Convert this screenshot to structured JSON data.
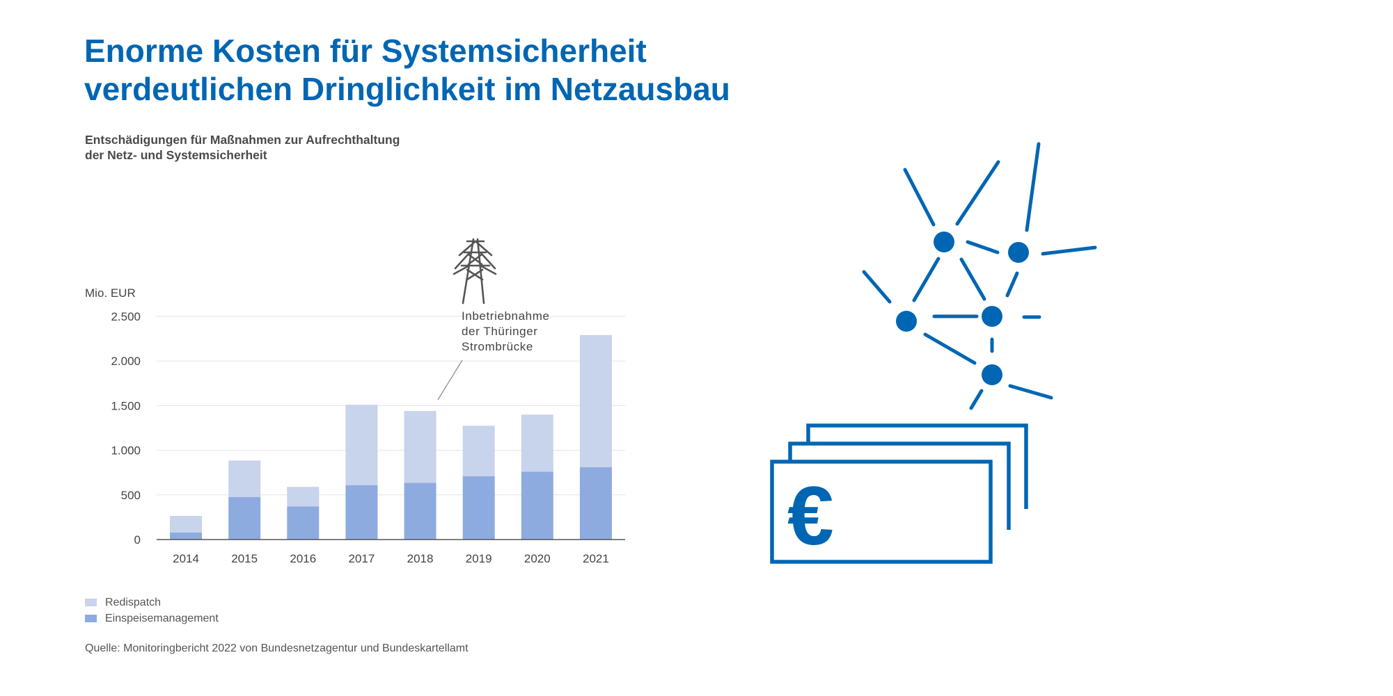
{
  "header": {
    "title_line1": "Enorme Kosten für Systemsicherheit",
    "title_line2": "verdeutlichen Dringlichkeit im Netzausbau"
  },
  "colors": {
    "brand_blue": "#0066b3",
    "redispatch": "#c8d3ec",
    "einspeisemanagement": "#8eabdf",
    "grid": "#e3e3e3",
    "pylon": "#555555"
  },
  "chart_data": {
    "type": "bar",
    "stacked": true,
    "title": "Entschädigungen für Maßnahmen zur Aufrechthaltung der Netz- und Systemsicherheit",
    "title_lines": [
      "Entschädigungen für Maßnahmen zur Aufrechthaltung",
      "der Netz- und Systemsicherheit"
    ],
    "ylabel": "Mio. EUR",
    "xlabel": "",
    "ylim": [
      0,
      2500
    ],
    "yticks": [
      0,
      500,
      1000,
      1500,
      2000,
      2500
    ],
    "ytick_labels": [
      "0",
      "500",
      "1.000",
      "1.500",
      "2.000",
      "2.500"
    ],
    "grid": true,
    "legend_position": "bottom-left",
    "categories": [
      "2014",
      "2015",
      "2016",
      "2017",
      "2018",
      "2019",
      "2020",
      "2021"
    ],
    "series": [
      {
        "name": "Einspeisemanagement",
        "values": [
          80,
          475,
          370,
          610,
          635,
          710,
          760,
          810
        ]
      },
      {
        "name": "Redispatch",
        "values": [
          185,
          410,
          220,
          900,
          805,
          565,
          640,
          1480
        ]
      }
    ],
    "annotation": {
      "text_lines": [
        "Inbetriebnahme",
        "der Thüringer",
        "Strombrücke"
      ],
      "category": "2018",
      "icon": "power-pylon-icon"
    }
  },
  "legend": {
    "items": [
      {
        "label": "Redispatch",
        "color": "#c8d3ec"
      },
      {
        "label": "Einspeisemanagement",
        "color": "#8eabdf"
      }
    ]
  },
  "footer": {
    "source": "Quelle: Monitoringbericht 2022 von Bundesnetzagentur und Bundeskartellamt"
  },
  "illustration": {
    "icons": [
      "network-nodes-icon",
      "euro-banknotes-icon"
    ],
    "euro_symbol": "€"
  }
}
